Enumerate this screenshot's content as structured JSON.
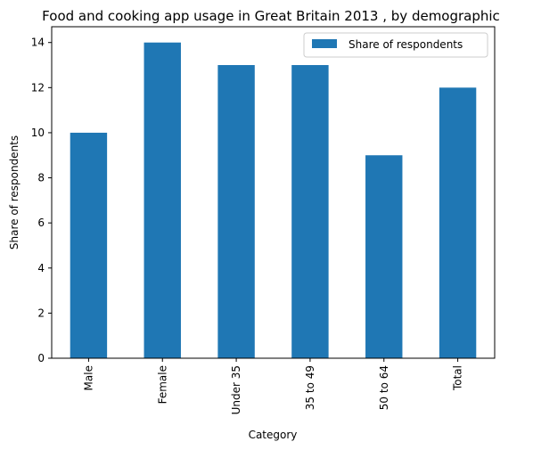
{
  "chart_data": {
    "type": "bar",
    "title": "Food and cooking app usage in Great Britain 2013 , by demographic",
    "xlabel": "Category",
    "ylabel": "Share of respondents",
    "categories": [
      "Male",
      "Female",
      "Under 35",
      "35 to 49",
      "50 to 64",
      "Total"
    ],
    "series": [
      {
        "name": "Share of respondents",
        "values": [
          10,
          14,
          13,
          13,
          9,
          12
        ]
      }
    ],
    "ylim": [
      0,
      14.7
    ],
    "yticks": [
      0,
      2,
      4,
      6,
      8,
      10,
      12,
      14
    ],
    "legend_position": "top-right",
    "grid": false,
    "colors": {
      "bar": "#1f77b4"
    }
  }
}
